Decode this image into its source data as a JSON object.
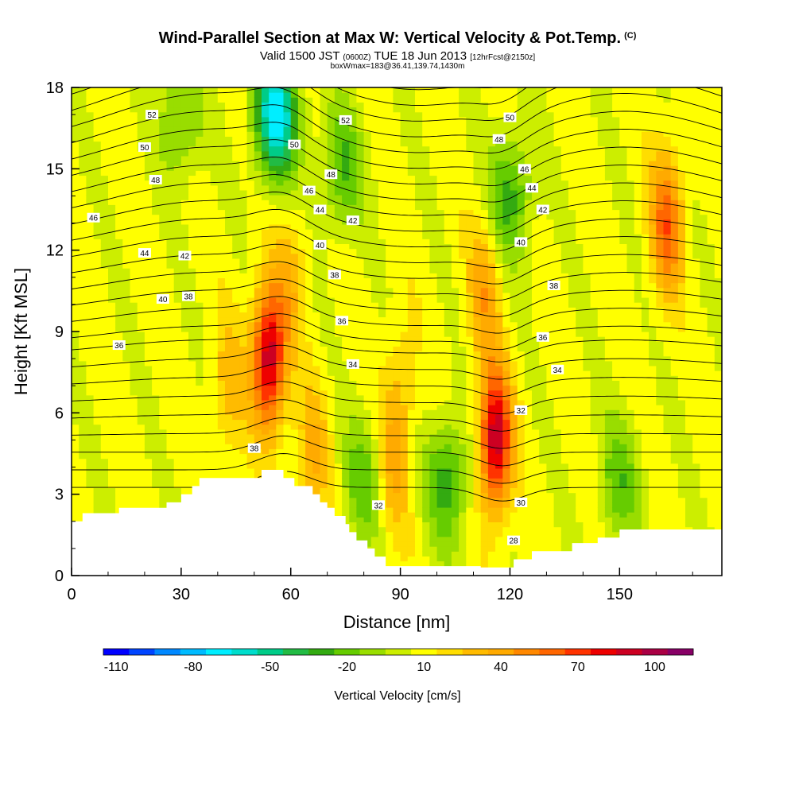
{
  "header": {
    "title": "Wind-Parallel Section at Max W: Vertical Velocity & Pot.Temp.",
    "title_mark": "(C)",
    "valid_prefix": "Valid 1500 JST",
    "valid_z": "(0600Z)",
    "valid_date": "TUE 18 Jun 2013",
    "forecast": "[12hrFcst@2150z]",
    "box_info": "boxWmax=183@36.41,139.74,1430m"
  },
  "chart_data": {
    "type": "heatmap",
    "xlabel": "Distance [nm]",
    "ylabel": "Height [Kft MSL]",
    "xlim": [
      0,
      178
    ],
    "ylim": [
      0,
      18
    ],
    "x_ticks": [
      0,
      30,
      60,
      90,
      120,
      150
    ],
    "y_ticks": [
      0,
      3,
      6,
      9,
      12,
      15,
      18
    ],
    "grid": false,
    "colorbar": {
      "title": "Vertical Velocity [cm/s]",
      "min": -115,
      "max": 115,
      "step": 10,
      "labels": [
        -110,
        -80,
        -50,
        -20,
        10,
        40,
        70,
        100
      ],
      "colors": [
        "#0000ff",
        "#0044ff",
        "#0088ff",
        "#00bbff",
        "#00eeff",
        "#00ddcc",
        "#00cc88",
        "#22bb44",
        "#33aa11",
        "#66cc00",
        "#99dd00",
        "#ccee00",
        "#ffff00",
        "#ffdd00",
        "#ffbb00",
        "#ffaa00",
        "#ff8800",
        "#ff6600",
        "#ff3300",
        "#ee0000",
        "#cc0022",
        "#aa0044",
        "#880066"
      ]
    },
    "field_features": [
      {
        "kind": "updraft",
        "x": 54,
        "z": 8,
        "w": 95
      },
      {
        "kind": "updraft",
        "x": 116,
        "z": 5,
        "w": 95
      },
      {
        "kind": "updraft",
        "x": 163,
        "z": 13,
        "w": 60
      },
      {
        "kind": "updraft",
        "x": 113,
        "z": 10.5,
        "w": 40
      },
      {
        "kind": "updraft",
        "x": 66,
        "z": 4.5,
        "w": 35
      },
      {
        "kind": "updraft",
        "x": 88,
        "z": 4,
        "w": 35
      },
      {
        "kind": "updraft",
        "x": 43,
        "z": 7,
        "w": 30
      },
      {
        "kind": "updraft",
        "x": 60,
        "z": 11,
        "w": 30
      },
      {
        "kind": "updraft",
        "x": 90,
        "z": 7,
        "w": 25
      },
      {
        "kind": "downdraft",
        "x": 56,
        "z": 17,
        "w": -70
      },
      {
        "kind": "downdraft",
        "x": 103,
        "z": 3.5,
        "w": -30
      },
      {
        "kind": "downdraft",
        "x": 120,
        "z": 14,
        "w": -30
      },
      {
        "kind": "downdraft",
        "x": 74,
        "z": 15,
        "w": -25
      },
      {
        "kind": "downdraft",
        "x": 80,
        "z": 3.5,
        "w": -20
      },
      {
        "kind": "downdraft",
        "x": 150,
        "z": 3.5,
        "w": -20
      },
      {
        "kind": "downdraft",
        "x": 30,
        "z": 17,
        "w": -20
      }
    ],
    "terrain": {
      "x": [
        0,
        3,
        3,
        13,
        13,
        26,
        26,
        30,
        30,
        33,
        33,
        35,
        35,
        52,
        52,
        58,
        58,
        61,
        61,
        66,
        66,
        68,
        68,
        70,
        70,
        72,
        72,
        75,
        75,
        76,
        76,
        78,
        78,
        81,
        81,
        83,
        83,
        86,
        86,
        97,
        97,
        112,
        112,
        121,
        121,
        126,
        126,
        137,
        137,
        144,
        144,
        150,
        150,
        159,
        159,
        178
      ],
      "z": [
        2.0,
        2.0,
        2.3,
        2.3,
        2.5,
        2.5,
        2.7,
        2.7,
        3.0,
        3.0,
        3.3,
        3.3,
        3.6,
        3.6,
        3.9,
        3.9,
        3.6,
        3.6,
        3.3,
        3.3,
        3.0,
        3.0,
        2.7,
        2.7,
        2.5,
        2.5,
        2.2,
        2.2,
        1.9,
        1.9,
        1.6,
        1.6,
        1.3,
        1.3,
        1.0,
        1.0,
        0.7,
        0.7,
        0.35,
        0.35,
        0.35,
        0.35,
        0.3,
        0.3,
        0.6,
        0.6,
        0.9,
        0.9,
        1.2,
        1.2,
        1.4,
        1.4,
        1.7,
        1.7,
        1.7,
        1.7
      ]
    },
    "theta_contours": {
      "levels": [
        28,
        29,
        30,
        31,
        32,
        33,
        34,
        35,
        36,
        37,
        38,
        39,
        40,
        41,
        42,
        43,
        44,
        45,
        46,
        47,
        48,
        49,
        50,
        51,
        52,
        53,
        54
      ]
    },
    "contour_labels": [
      {
        "text": "52",
        "x": 22,
        "z": 17.0
      },
      {
        "text": "50",
        "x": 20,
        "z": 15.8
      },
      {
        "text": "48",
        "x": 23,
        "z": 14.6
      },
      {
        "text": "46",
        "x": 6,
        "z": 13.2
      },
      {
        "text": "44",
        "x": 20,
        "z": 11.9
      },
      {
        "text": "42",
        "x": 31,
        "z": 11.8
      },
      {
        "text": "40",
        "x": 25,
        "z": 10.2
      },
      {
        "text": "38",
        "x": 32,
        "z": 10.3
      },
      {
        "text": "36",
        "x": 13,
        "z": 8.5
      },
      {
        "text": "38",
        "x": 50,
        "z": 4.7
      },
      {
        "text": "52",
        "x": 75,
        "z": 16.8
      },
      {
        "text": "50",
        "x": 61,
        "z": 15.9
      },
      {
        "text": "48",
        "x": 71,
        "z": 14.8
      },
      {
        "text": "46",
        "x": 65,
        "z": 14.2
      },
      {
        "text": "44",
        "x": 68,
        "z": 13.5
      },
      {
        "text": "42",
        "x": 77,
        "z": 13.1
      },
      {
        "text": "40",
        "x": 68,
        "z": 12.2
      },
      {
        "text": "38",
        "x": 72,
        "z": 11.1
      },
      {
        "text": "36",
        "x": 74,
        "z": 9.4
      },
      {
        "text": "34",
        "x": 77,
        "z": 7.8
      },
      {
        "text": "32",
        "x": 84,
        "z": 2.6
      },
      {
        "text": "50",
        "x": 120,
        "z": 16.9
      },
      {
        "text": "48",
        "x": 117,
        "z": 16.1
      },
      {
        "text": "46",
        "x": 124,
        "z": 15.0
      },
      {
        "text": "44",
        "x": 126,
        "z": 14.3
      },
      {
        "text": "42",
        "x": 129,
        "z": 13.5
      },
      {
        "text": "40",
        "x": 123,
        "z": 12.3
      },
      {
        "text": "38",
        "x": 132,
        "z": 10.7
      },
      {
        "text": "36",
        "x": 129,
        "z": 8.8
      },
      {
        "text": "34",
        "x": 133,
        "z": 7.6
      },
      {
        "text": "32",
        "x": 123,
        "z": 6.1
      },
      {
        "text": "30",
        "x": 123,
        "z": 2.7
      },
      {
        "text": "28",
        "x": 121,
        "z": 1.3
      }
    ]
  }
}
